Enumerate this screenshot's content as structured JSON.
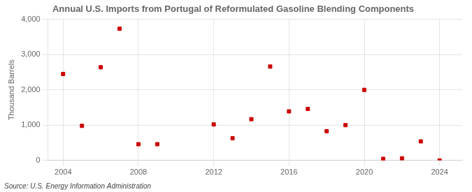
{
  "chart_data": {
    "type": "scatter",
    "title": "Annual U.S. Imports from Portugal of Reformulated Gasoline Blending Components",
    "ylabel": "Thousand Barrels",
    "annotations": [
      "Source: U.S. Energy Information Administration"
    ],
    "x": [
      2004,
      2005,
      2006,
      2007,
      2008,
      2009,
      2012,
      2013,
      2014,
      2015,
      2016,
      2017,
      2018,
      2019,
      2020,
      2021,
      2022,
      2023,
      2024
    ],
    "values": [
      2450,
      980,
      2640,
      3730,
      460,
      460,
      1020,
      630,
      1170,
      2660,
      1390,
      1460,
      830,
      1000,
      2000,
      45,
      60,
      540,
      0
    ],
    "color": "#cc0000",
    "marker": "square",
    "xlim": [
      2003.2,
      2025.2
    ],
    "ylim": [
      0,
      4000
    ],
    "xticks": [
      2004,
      2008,
      2012,
      2016,
      2020,
      2024
    ],
    "yticks": [
      0,
      {
        "value": 1000,
        "label": "1,000"
      },
      {
        "value": 2000,
        "label": "2,000"
      },
      {
        "value": 3000,
        "label": "3,000"
      },
      {
        "value": 4000,
        "label": "4,000"
      }
    ],
    "grid": true
  }
}
